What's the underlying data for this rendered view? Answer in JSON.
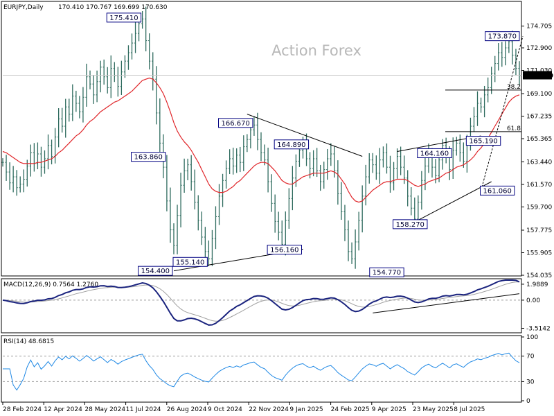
{
  "chart_data": {
    "type": "ohlc",
    "title": "EURJPY,Daily",
    "header_values": "170.410 170.767 169.699 170.630",
    "watermark": "Action Forex",
    "last_price": "170.630",
    "price_axis": {
      "range": [
        154.035,
        176.64
      ],
      "ticks": [
        "174.705",
        "172.900",
        "171.030",
        "169.100",
        "167.235",
        "165.365",
        "163.440",
        "161.570",
        "159.700",
        "157.775",
        "155.905",
        "154.035"
      ]
    },
    "x_axis": {
      "ticks": [
        "28 Feb 2024",
        "12 Apr 2024",
        "28 May 2024",
        "11 Jul 2024",
        "26 Aug 2024",
        "9 Oct 2024",
        "22 Nov 2024",
        "9 Jan 2025",
        "24 Feb 2025",
        "9 Apr 2025",
        "23 May 2025",
        "8 Jul 2025"
      ]
    },
    "closes": [
      163.4,
      162.6,
      161.7,
      162.2,
      161.3,
      161.6,
      162.0,
      163.1,
      164.2,
      163.3,
      164.1,
      163.0,
      163.7,
      164.8,
      163.9,
      165.5,
      167.0,
      166.4,
      168.0,
      167.4,
      168.9,
      168.3,
      167.6,
      168.8,
      170.5,
      169.9,
      169.0,
      170.1,
      171.3,
      170.5,
      169.6,
      171.2,
      170.6,
      169.7,
      170.9,
      171.8,
      172.5,
      173.3,
      174.1,
      174.9,
      175.3,
      173.5,
      171.8,
      170.3,
      167.5,
      165.0,
      163.0,
      160.2,
      157.8,
      156.5,
      159.0,
      161.5,
      162.7,
      163.2,
      161.8,
      160.1,
      158.6,
      157.2,
      156.0,
      155.4,
      157.1,
      158.9,
      160.6,
      161.9,
      162.9,
      163.7,
      163.1,
      164.0,
      163.4,
      164.7,
      165.3,
      166.1,
      166.5,
      165.3,
      164.2,
      163.6,
      161.8,
      160.0,
      158.5,
      157.6,
      156.6,
      158.6,
      160.4,
      162.1,
      163.5,
      164.4,
      164.8,
      163.7,
      162.9,
      163.7,
      162.7,
      161.8,
      162.8,
      163.7,
      164.1,
      162.7,
      160.8,
      159.3,
      157.8,
      156.0,
      155.4,
      156.8,
      158.6,
      160.6,
      162.2,
      163.6,
      163.2,
      162.5,
      163.6,
      164.2,
      163.0,
      161.7,
      162.9,
      163.9,
      163.0,
      162.1,
      160.6,
      159.6,
      158.7,
      160.1,
      161.9,
      163.1,
      164.0,
      163.0,
      162.3,
      163.6,
      164.8,
      163.9,
      162.8,
      164.4,
      165.0,
      164.2,
      163.5,
      165.1,
      166.4,
      167.2,
      168.3,
      168.0,
      169.0,
      169.6,
      170.8,
      171.6,
      172.5,
      172.1,
      172.9,
      173.4,
      172.3,
      171.2,
      170.6
    ],
    "ma": [
      164.3,
      164.2,
      164.0,
      163.8,
      163.6,
      163.4,
      163.3,
      163.3,
      163.3,
      163.3,
      163.4,
      163.4,
      163.5,
      163.6,
      163.7,
      163.9,
      164.2,
      164.4,
      164.7,
      165.0,
      165.3,
      165.6,
      165.8,
      166.1,
      166.5,
      166.8,
      167.0,
      167.3,
      167.6,
      167.8,
      168.0,
      168.2,
      168.4,
      168.5,
      168.7,
      168.9,
      169.1,
      169.3,
      169.6,
      169.9,
      170.2,
      170.3,
      170.4,
      170.3,
      170.0,
      169.6,
      169.1,
      168.4,
      167.6,
      166.7,
      166.0,
      165.5,
      165.1,
      164.8,
      164.4,
      163.9,
      163.4,
      162.8,
      162.2,
      161.6,
      161.2,
      161.0,
      160.9,
      160.9,
      161.0,
      161.2,
      161.4,
      161.7,
      161.9,
      162.2,
      162.5,
      162.8,
      163.1,
      163.3,
      163.4,
      163.4,
      163.3,
      163.0,
      162.7,
      162.3,
      161.9,
      161.7,
      161.6,
      161.6,
      161.8,
      162.0,
      162.2,
      162.3,
      162.4,
      162.5,
      162.5,
      162.5,
      162.5,
      162.6,
      162.7,
      162.6,
      162.4,
      162.0,
      161.6,
      161.0,
      160.5,
      160.2,
      160.1,
      160.2,
      160.5,
      160.8,
      161.1,
      161.3,
      161.5,
      161.7,
      161.8,
      161.8,
      161.9,
      162.0,
      162.0,
      162.0,
      161.9,
      161.7,
      161.5,
      161.4,
      161.5,
      161.6,
      161.8,
      161.9,
      162.0,
      162.1,
      162.3,
      162.5,
      162.6,
      162.8,
      163.0,
      163.1,
      163.2,
      163.4,
      163.6,
      163.9,
      164.3,
      164.6,
      165.0,
      165.4,
      165.9,
      166.4,
      166.9,
      167.4,
      167.9,
      168.4,
      168.7,
      168.9,
      169.0
    ],
    "annotations": [
      {
        "label": "175.410",
        "i": 40,
        "price": 175.41,
        "pos": "left"
      },
      {
        "label": "163.860",
        "i": 47,
        "price": 163.86,
        "pos": "left"
      },
      {
        "label": "154.400",
        "i": 49,
        "price": 154.4,
        "pos": "left"
      },
      {
        "label": "155.140",
        "i": 59,
        "price": 155.14,
        "pos": "left"
      },
      {
        "label": "166.670",
        "i": 72,
        "price": 166.67,
        "pos": "left"
      },
      {
        "label": "164.890",
        "i": 88,
        "price": 164.89,
        "pos": "left"
      },
      {
        "label": "156.160",
        "i": 86,
        "price": 156.16,
        "pos": "left"
      },
      {
        "label": "164.160",
        "i": 118,
        "price": 164.16,
        "pos": "right"
      },
      {
        "label": "154.770",
        "i": 110,
        "price": 154.77,
        "pos": "below"
      },
      {
        "label": "158.270",
        "i": 122,
        "price": 158.27,
        "pos": "left"
      },
      {
        "label": "165.190",
        "i": 132,
        "price": 165.19,
        "pos": "right"
      },
      {
        "label": "161.060",
        "i": 136,
        "price": 161.06,
        "pos": "right"
      },
      {
        "label": "173.870",
        "i": 149,
        "price": 173.87,
        "pos": "left"
      }
    ],
    "fib_levels": [
      {
        "label": "38.2",
        "price": 169.4
      },
      {
        "label": "61.8",
        "price": 165.95
      }
    ],
    "trendlines": [
      {
        "from": [
          49,
          154.4
        ],
        "to": [
          86,
          156.2
        ]
      },
      {
        "from": [
          70,
          167.4
        ],
        "to": [
          103,
          163.9
        ]
      },
      {
        "from": [
          113,
          164.3
        ],
        "to": [
          137,
          165.6
        ]
      },
      {
        "from": [
          117,
          158.3
        ],
        "to": [
          140,
          161.8
        ]
      }
    ],
    "macd": {
      "label": "MACD(12,26,9) 0.7564 1.2760",
      "range": [
        -3.9,
        2.5
      ],
      "ticks": [
        "1.9889",
        "0.00",
        "-3.5142"
      ],
      "trendline": {
        "from": [
          106,
          -1.6
        ],
        "to": [
          148,
          0.8
        ]
      }
    },
    "rsi": {
      "label": "RSI(14) 48.6815",
      "range": [
        0,
        100
      ],
      "ticks": [
        "100",
        "70",
        "30",
        "0"
      ],
      "levels": [
        70,
        30
      ]
    }
  }
}
